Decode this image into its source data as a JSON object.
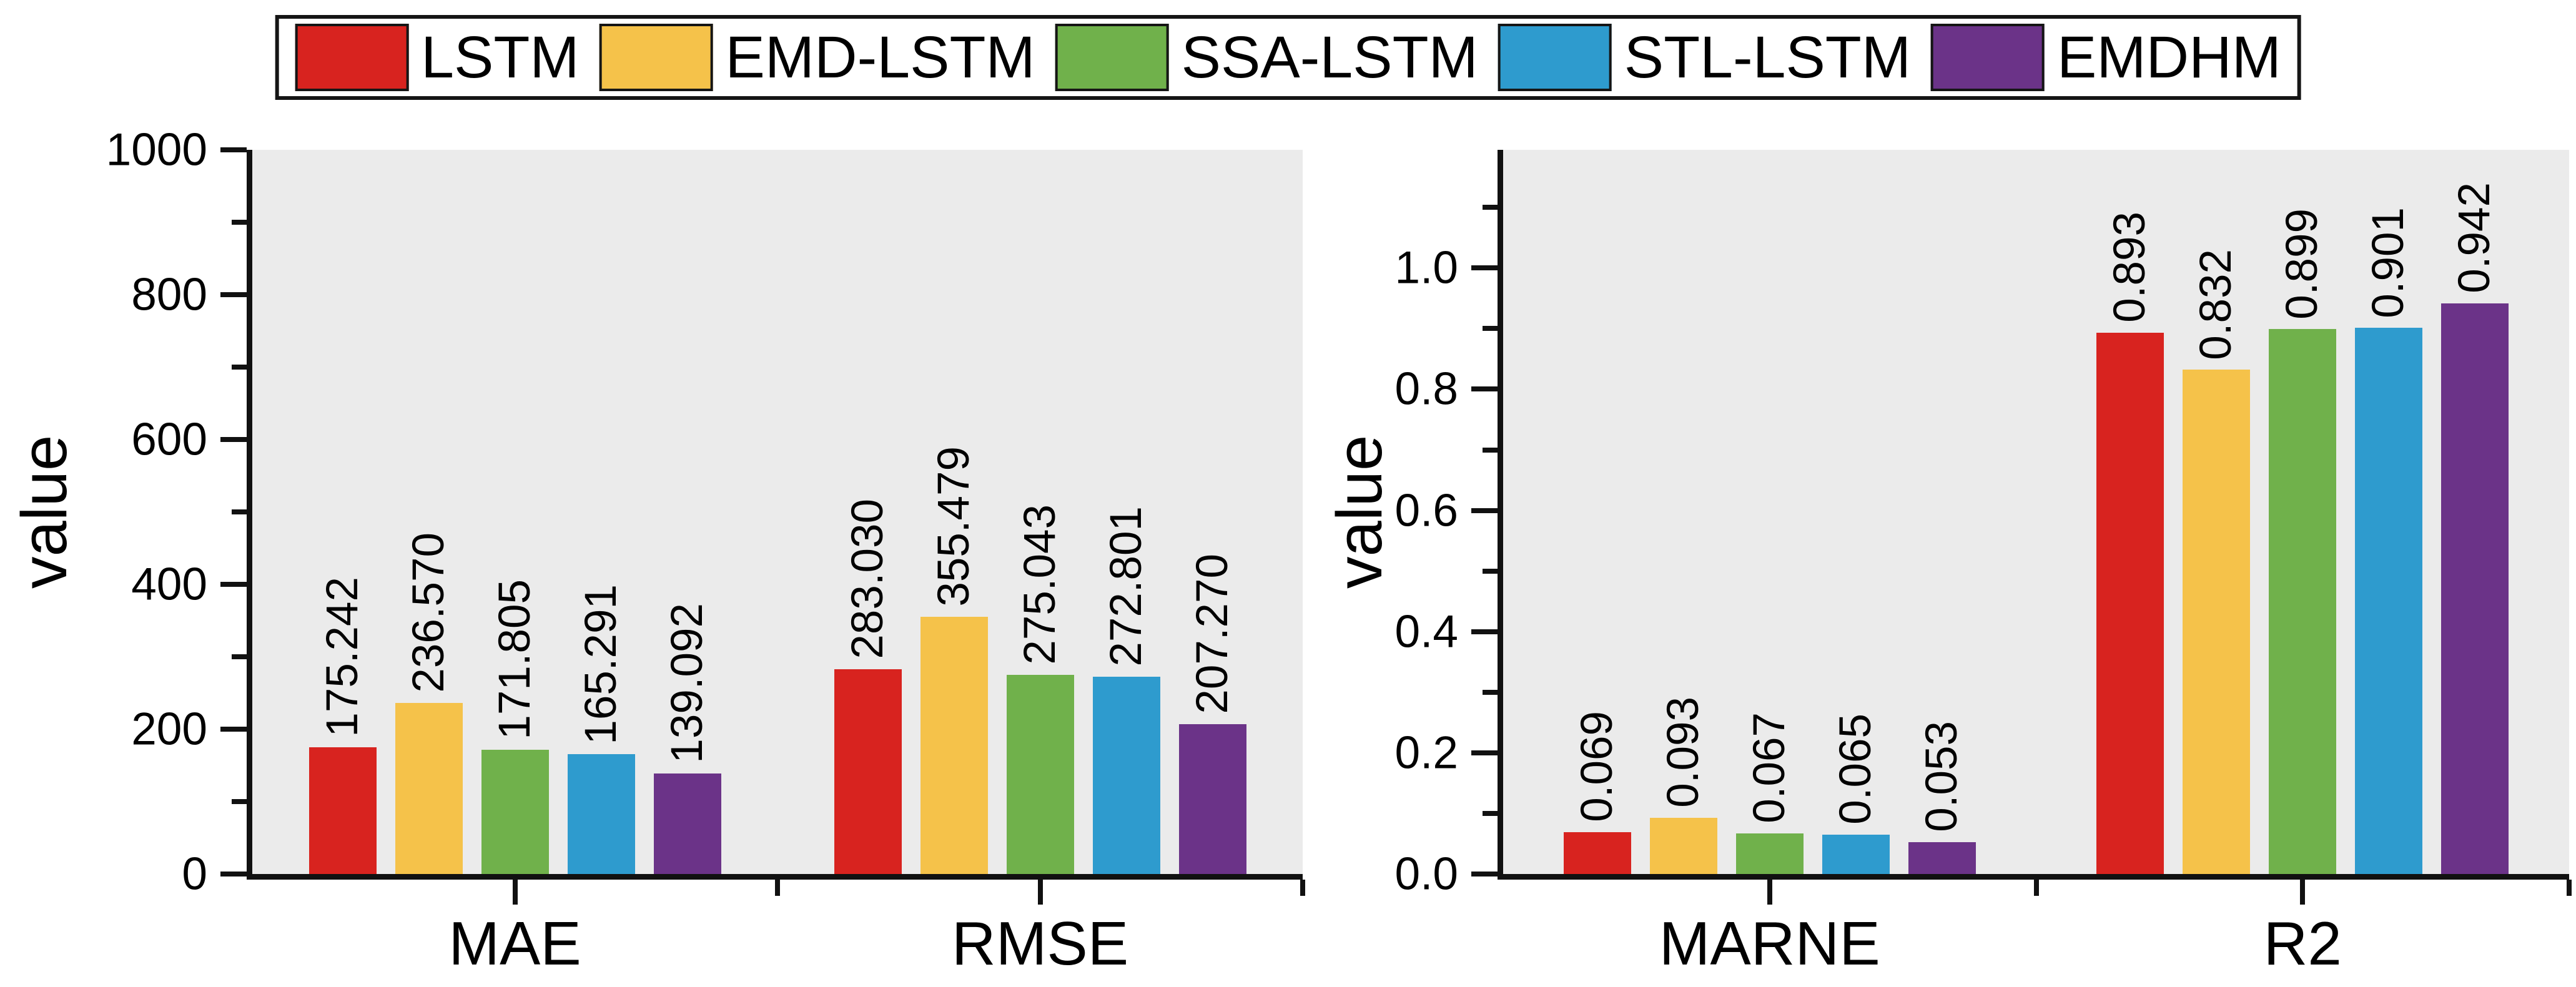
{
  "legend": {
    "position": "top-center",
    "items": [
      {
        "label": "LSTM",
        "color": "#d8231f"
      },
      {
        "label": "EMD-LSTM",
        "color": "#f5c24a"
      },
      {
        "label": "SSA-LSTM",
        "color": "#70b14b"
      },
      {
        "label": "STL-LSTM",
        "color": "#2e9bce"
      },
      {
        "label": "EMDHM",
        "color": "#6b3388"
      }
    ]
  },
  "chart_data": [
    {
      "type": "bar",
      "title": "",
      "xlabel": "",
      "ylabel": "value",
      "categories": [
        "MAE",
        "RMSE"
      ],
      "ylim": [
        0,
        1000
      ],
      "ytick_values": [
        0,
        200,
        400,
        600,
        800,
        1000
      ],
      "ytick_labels": [
        "0",
        "200",
        "400",
        "600",
        "800",
        "1000"
      ],
      "yminor_values": [
        100,
        300,
        500,
        700,
        900
      ],
      "grid": false,
      "legend_position": "top-center",
      "plot_bg": "#ebebeb",
      "series": [
        {
          "name": "LSTM",
          "color": "#d8231f",
          "values": [
            175.242,
            283.03
          ],
          "labels": [
            "175.242",
            "283.030"
          ]
        },
        {
          "name": "EMD-LSTM",
          "color": "#f5c24a",
          "values": [
            236.57,
            355.479
          ],
          "labels": [
            "236.570",
            "355.479"
          ]
        },
        {
          "name": "SSA-LSTM",
          "color": "#70b14b",
          "values": [
            171.805,
            275.043
          ],
          "labels": [
            "171.805",
            "275.043"
          ]
        },
        {
          "name": "STL-LSTM",
          "color": "#2e9bce",
          "values": [
            165.291,
            272.801
          ],
          "labels": [
            "165.291",
            "272.801"
          ]
        },
        {
          "name": "EMDHM",
          "color": "#6b3388",
          "values": [
            139.092,
            207.27
          ],
          "labels": [
            "139.092",
            "207.270"
          ]
        }
      ]
    },
    {
      "type": "bar",
      "title": "",
      "xlabel": "",
      "ylabel": "value",
      "categories": [
        "MARNE",
        "R2"
      ],
      "ylim": [
        0,
        1.195
      ],
      "ytick_values": [
        0,
        0.2,
        0.4,
        0.6,
        0.8,
        1.0
      ],
      "ytick_labels": [
        "0.0",
        "0.2",
        "0.4",
        "0.6",
        "0.8",
        "1.0"
      ],
      "yminor_values": [
        0.1,
        0.3,
        0.5,
        0.7,
        0.9,
        1.1
      ],
      "grid": false,
      "legend_position": "top-center",
      "plot_bg": "#ebebeb",
      "series": [
        {
          "name": "LSTM",
          "color": "#d8231f",
          "values": [
            0.069,
            0.893
          ],
          "labels": [
            "0.069",
            "0.893"
          ]
        },
        {
          "name": "EMD-LSTM",
          "color": "#f5c24a",
          "values": [
            0.093,
            0.832
          ],
          "labels": [
            "0.093",
            "0.832"
          ]
        },
        {
          "name": "SSA-LSTM",
          "color": "#70b14b",
          "values": [
            0.067,
            0.899
          ],
          "labels": [
            "0.067",
            "0.899"
          ]
        },
        {
          "name": "STL-LSTM",
          "color": "#2e9bce",
          "values": [
            0.065,
            0.901
          ],
          "labels": [
            "0.065",
            "0.901"
          ]
        },
        {
          "name": "EMDHM",
          "color": "#6b3388",
          "values": [
            0.053,
            0.942
          ],
          "labels": [
            "0.053",
            "0.942"
          ]
        }
      ]
    }
  ]
}
